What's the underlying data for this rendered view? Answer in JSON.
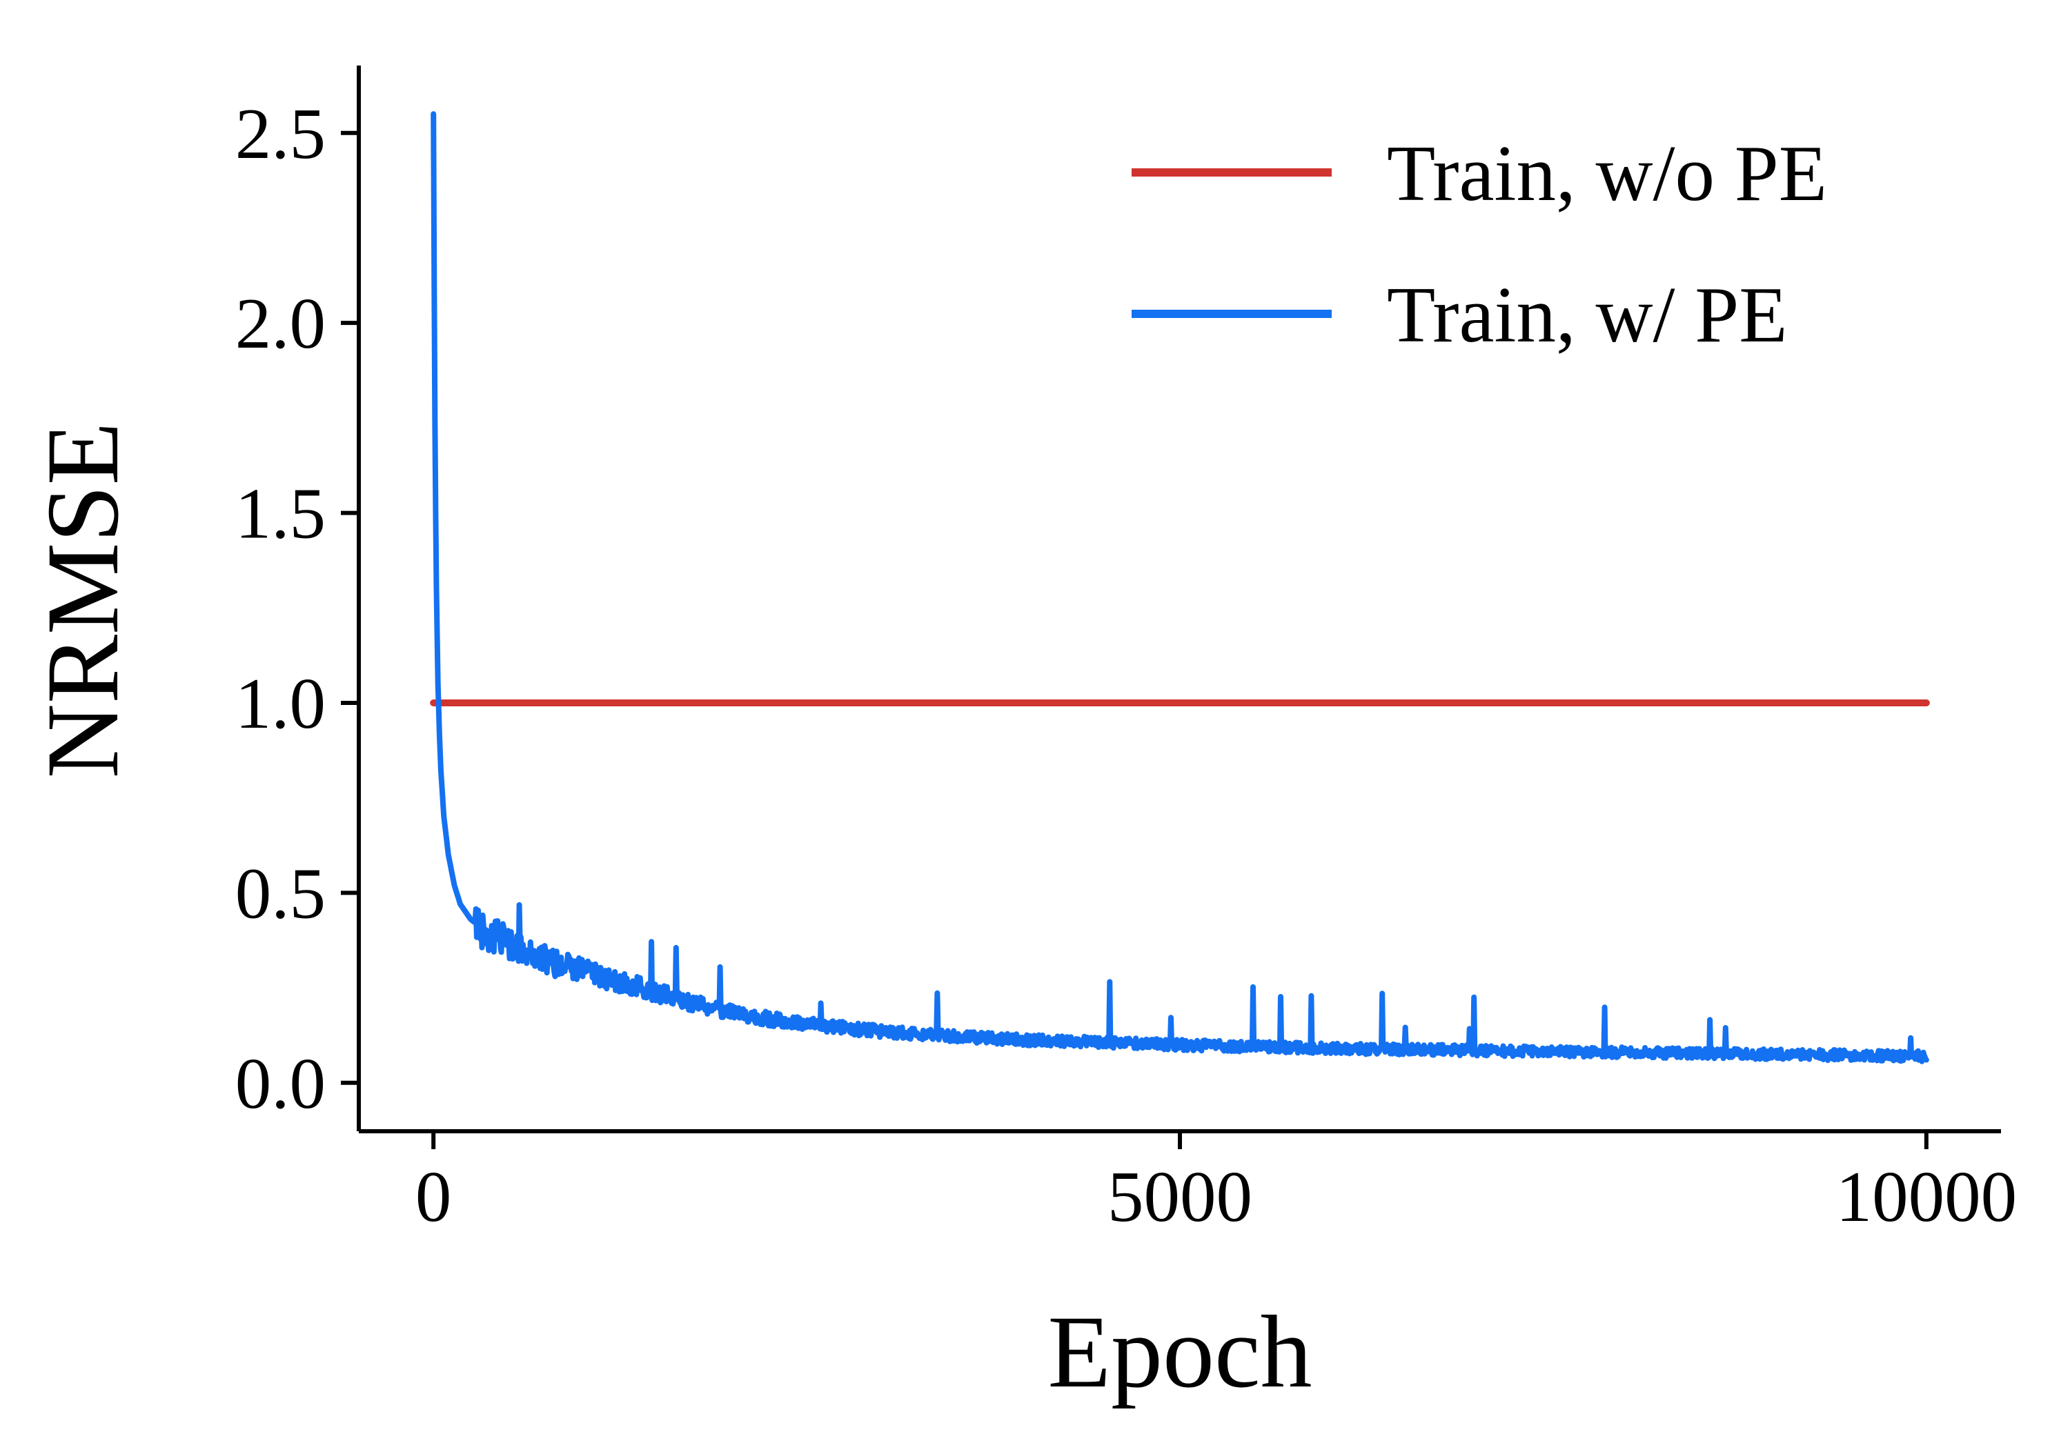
{
  "figure": {
    "background": "#ffffff"
  },
  "chart_data": {
    "type": "line",
    "title": "",
    "xlabel": "Epoch",
    "ylabel": "NRMSE",
    "xlim": [
      0,
      10000
    ],
    "ylim": [
      0,
      2.55
    ],
    "xticks": [
      0,
      5000,
      10000
    ],
    "yticks": [
      0.0,
      0.5,
      1.0,
      1.5,
      2.0,
      2.5
    ],
    "ytick_decimals": 1,
    "grid": false,
    "legend": {
      "position": "upper right",
      "frame": false
    },
    "axis_color": "#000000",
    "series": [
      {
        "name": "Train, w/o PE",
        "color": "#d0342e",
        "type": "constant",
        "x": [
          0,
          10000
        ],
        "values": [
          1.0,
          1.0
        ]
      },
      {
        "name": "Train, w/ PE",
        "color": "#1471f2",
        "type": "noisy-decay",
        "x": [
          0,
          5,
          10,
          15,
          20,
          30,
          40,
          50,
          70,
          100,
          140,
          180,
          250,
          350,
          450,
          550,
          700,
          850,
          1000,
          1200,
          1400,
          1600,
          1800,
          2000,
          2300,
          2600,
          3000,
          3400,
          3800,
          4200,
          4600,
          5000,
          5500,
          6000,
          6500,
          7000,
          7500,
          8000,
          8500,
          9000,
          9500,
          10000
        ],
        "values": [
          2.55,
          2.1,
          1.75,
          1.5,
          1.3,
          1.05,
          0.92,
          0.82,
          0.7,
          0.6,
          0.52,
          0.47,
          0.43,
          0.4,
          0.375,
          0.355,
          0.33,
          0.31,
          0.295,
          0.27,
          0.25,
          0.225,
          0.205,
          0.185,
          0.165,
          0.15,
          0.135,
          0.125,
          0.115,
          0.11,
          0.105,
          0.1,
          0.095,
          0.09,
          0.088,
          0.085,
          0.082,
          0.08,
          0.078,
          0.075,
          0.072,
          0.07
        ],
        "noise": {
          "seed": 42,
          "step": 5,
          "start_epoch": 280,
          "base_amplitude": 0.014,
          "early_amplitude": 0.04,
          "early_decay_epochs": 900,
          "spike_probability": 0.02,
          "spike_min": 0.04,
          "spike_max": 0.16,
          "min_value": 0.048
        }
      }
    ]
  }
}
